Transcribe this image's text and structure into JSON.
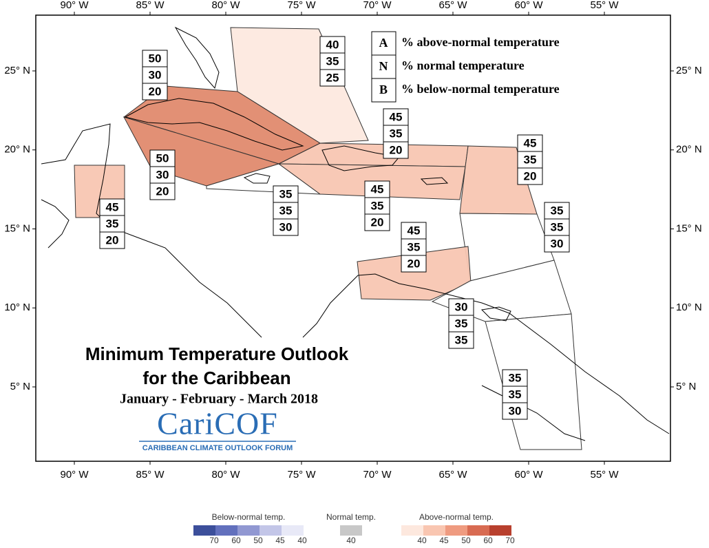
{
  "axes": {
    "longitude": [
      {
        "value": 90,
        "label": "90° W"
      },
      {
        "value": 85,
        "label": "85° W"
      },
      {
        "value": 80,
        "label": "80° W"
      },
      {
        "value": 75,
        "label": "75° W"
      },
      {
        "value": 70,
        "label": "70° W"
      },
      {
        "value": 65,
        "label": "65° W"
      },
      {
        "value": 60,
        "label": "60° W"
      },
      {
        "value": 55,
        "label": "55° W"
      }
    ],
    "latitude": [
      {
        "value": 25,
        "label": "25° N"
      },
      {
        "value": 20,
        "label": "20° N"
      },
      {
        "value": 15,
        "label": "15° N"
      },
      {
        "value": 10,
        "label": "10° N"
      },
      {
        "value": 5,
        "label": "5° N"
      }
    ]
  },
  "legend": {
    "items": [
      {
        "key": "A",
        "text": "% above-normal temperature"
      },
      {
        "key": "N",
        "text": "% normal temperature"
      },
      {
        "key": "B",
        "text": "% below-normal temperature"
      }
    ]
  },
  "title": "Minimum Temperature Outlook",
  "subtitle": "for the Caribbean",
  "period": "January - February - March 2018",
  "logo": {
    "name": "CariCOF",
    "tagline": "CARIBBEAN CLIMATE OUTLOOK FORUM"
  },
  "regions": [
    {
      "A": 40,
      "N": 35,
      "B": 25,
      "color": "#fde9df"
    },
    {
      "A": 50,
      "N": 30,
      "B": 20,
      "color": "#e08a6e"
    },
    {
      "A": 50,
      "N": 30,
      "B": 20,
      "color": "#e08a6e"
    },
    {
      "A": 45,
      "N": 35,
      "B": 20,
      "color": "#f8c6b2"
    },
    {
      "A": 35,
      "N": 35,
      "B": 30,
      "color": "#ffffff"
    },
    {
      "A": 45,
      "N": 35,
      "B": 20,
      "color": "#f8c6b2"
    },
    {
      "A": 45,
      "N": 35,
      "B": 20,
      "color": "#f8c6b2"
    },
    {
      "A": 35,
      "N": 35,
      "B": 30,
      "color": "#ffffff"
    },
    {
      "A": 45,
      "N": 35,
      "B": 20,
      "color": "#f8c6b2"
    },
    {
      "A": 45,
      "N": 35,
      "B": 20,
      "color": "#f8c6b2"
    },
    {
      "A": 30,
      "N": 35,
      "B": 35,
      "color": "#ffffff"
    },
    {
      "A": 35,
      "N": 35,
      "B": 30,
      "color": "#ffffff"
    }
  ],
  "colorbar": [
    {
      "title": "Below-normal temp.",
      "colors": [
        "#3c4f9b",
        "#6270bd",
        "#9198d2",
        "#c3c6e8",
        "#e8e9f7"
      ],
      "labels": [
        70,
        60,
        50,
        45,
        40
      ]
    },
    {
      "title": "Normal temp.",
      "colors": [
        "#c8c8c8"
      ],
      "labels": [
        40
      ]
    },
    {
      "title": "Above-normal temp.",
      "colors": [
        "#fde8de",
        "#f9c6b1",
        "#ef9b80",
        "#d86b52",
        "#b8402e"
      ],
      "labels": [
        40,
        45,
        50,
        60,
        70
      ]
    }
  ]
}
